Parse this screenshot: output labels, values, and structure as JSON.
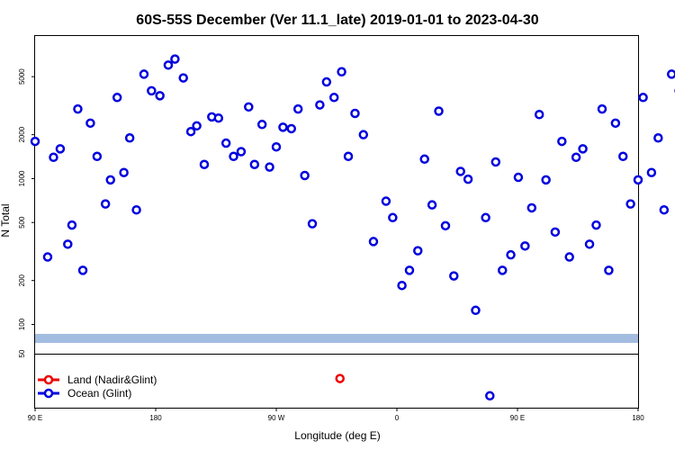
{
  "chart_data": {
    "type": "scatter",
    "title": "60S-55S December (Ver 11.1_late)   2019-01-01 to 2023-04-30",
    "xlabel": "Longitude (deg E)",
    "ylabel": "N Total",
    "x_range": [
      90,
      450
    ],
    "y_log": true,
    "y_range": [
      63,
      9500
    ],
    "y_ticks": [
      {
        "value": 100,
        "label": "100"
      },
      {
        "value": 200,
        "label": "200"
      },
      {
        "value": 500,
        "label": "500"
      },
      {
        "value": 1000,
        "label": "1000"
      },
      {
        "value": 2000,
        "label": "2000"
      },
      {
        "value": 5000,
        "label": "5000"
      }
    ],
    "bottom_panel_label": "50",
    "x_ticks": [
      {
        "value": 90,
        "label": "90 E"
      },
      {
        "value": 180,
        "label": "180"
      },
      {
        "value": 270,
        "label": "90 W"
      },
      {
        "value": 360,
        "label": "0"
      },
      {
        "value": 450,
        "label": "90 E"
      },
      {
        "value": 540,
        "label": "180"
      }
    ],
    "grid": false,
    "legend_position": "bottom-left",
    "series": [
      {
        "name": "Ocean (Glint)",
        "color": "#0000dd",
        "points": [
          [
            90,
            1800
          ],
          [
            97.5,
            290
          ],
          [
            101,
            1400
          ],
          [
            105,
            1600
          ],
          [
            109.5,
            355
          ],
          [
            112,
            480
          ],
          [
            115.5,
            3000
          ],
          [
            118.5,
            235
          ],
          [
            123,
            2400
          ],
          [
            127,
            1420
          ],
          [
            132,
            670
          ],
          [
            135,
            980
          ],
          [
            139,
            3600
          ],
          [
            143,
            1100
          ],
          [
            146.5,
            1900
          ],
          [
            150.5,
            610
          ],
          [
            155,
            5200
          ],
          [
            159.5,
            4000
          ],
          [
            164.5,
            3700
          ],
          [
            169.5,
            6000
          ],
          [
            173.5,
            6600
          ],
          [
            178.5,
            4900
          ],
          [
            183,
            2100
          ],
          [
            186.5,
            2300
          ],
          [
            191,
            1250
          ],
          [
            195.5,
            2650
          ],
          [
            199.5,
            2600
          ],
          [
            204,
            1750
          ],
          [
            208.5,
            1420
          ],
          [
            213,
            1530
          ],
          [
            217.5,
            3100
          ],
          [
            221,
            1250
          ],
          [
            225.5,
            2350
          ],
          [
            230,
            1200
          ],
          [
            234,
            1650
          ],
          [
            238,
            2250
          ],
          [
            243,
            2200
          ],
          [
            247,
            3000
          ],
          [
            251,
            1050
          ],
          [
            255.5,
            490
          ],
          [
            260,
            3200
          ],
          [
            264,
            4600
          ],
          [
            268.5,
            3600
          ],
          [
            273,
            5400
          ],
          [
            277,
            1420
          ],
          [
            281,
            2800
          ],
          [
            286,
            2000
          ],
          [
            292,
            370
          ],
          [
            299.5,
            700
          ],
          [
            303.5,
            540
          ],
          [
            309,
            185
          ],
          [
            313.5,
            235
          ],
          [
            318.5,
            320
          ],
          [
            322.5,
            1360
          ],
          [
            327,
            660
          ],
          [
            331,
            2900
          ],
          [
            335,
            475
          ],
          [
            340,
            215
          ],
          [
            344,
            1120
          ],
          [
            348.5,
            990
          ],
          [
            353,
            125
          ],
          [
            359,
            540
          ],
          [
            365,
            1300
          ],
          [
            369,
            235
          ],
          [
            374,
            300
          ],
          [
            378.5,
            1020
          ],
          [
            382.5,
            345
          ],
          [
            386.5,
            630
          ],
          [
            391,
            2750
          ],
          [
            395,
            980
          ],
          [
            400.5,
            430
          ],
          [
            404.5,
            1800
          ],
          [
            409,
            290
          ],
          [
            413,
            1400
          ],
          [
            417,
            1600
          ],
          [
            421,
            355
          ],
          [
            425,
            480
          ],
          [
            428.5,
            3000
          ],
          [
            432.5,
            235
          ],
          [
            436.5,
            2400
          ],
          [
            441,
            1420
          ],
          [
            445.5,
            670
          ],
          [
            450,
            980
          ],
          [
            453,
            3600
          ],
          [
            458,
            1100
          ],
          [
            462,
            1900
          ],
          [
            465.5,
            610
          ],
          [
            470,
            5200
          ],
          [
            474.5,
            4000
          ]
        ],
        "extra_points": [
          [
            361.5,
            0.22
          ]
        ]
      },
      {
        "name": "Land (Nadir&Glint)",
        "color": "#ee0000",
        "points": [],
        "extra_points": [
          [
            272,
            0.54
          ]
        ]
      }
    ],
    "legend": [
      {
        "label": "Land (Nadir&Glint)",
        "color": "#ee0000"
      },
      {
        "label": "Ocean (Glint)",
        "color": "#0000dd"
      }
    ],
    "band_color": "#a3bde0"
  }
}
